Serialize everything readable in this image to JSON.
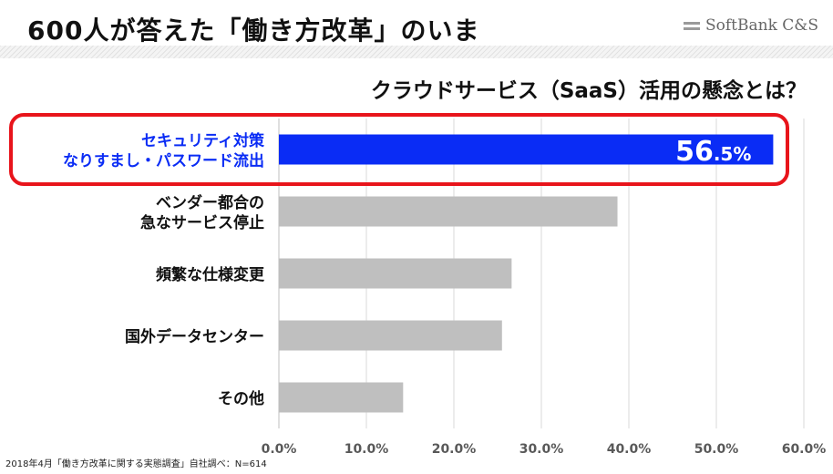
{
  "header": {
    "title": "600人が答えた「働き方改革」のいま",
    "logo_text": "SoftBank C&S"
  },
  "footnote": "2018年4月「働き方改革に関する実態調査」自社調べ：N=614",
  "colors": {
    "highlight_bar": "#0a2cf5",
    "default_bar": "#bfbfbf",
    "highlight_box": "#e8141b"
  },
  "chart_data": {
    "type": "bar",
    "orientation": "horizontal",
    "title": "クラウドサービス（SaaS）活用の懸念とは？",
    "categories": [
      [
        "セキュリティ対策",
        "なりすまし・パスワード流出"
      ],
      [
        "ベンダー都合の",
        "急なサービス停止"
      ],
      [
        "頻繁な仕様変更"
      ],
      [
        "国外データセンター"
      ],
      [
        "その他"
      ]
    ],
    "values": [
      56.5,
      38.7,
      26.6,
      25.5,
      14.2
    ],
    "highlight_index": 0,
    "highlight_label": {
      "main": "56",
      "sub": ".5%"
    },
    "xlim": [
      0,
      60
    ],
    "xticks": [
      "0.0%",
      "10.0%",
      "20.0%",
      "30.0%",
      "40.0%",
      "50.0%",
      "60.0%"
    ],
    "grid": true
  }
}
